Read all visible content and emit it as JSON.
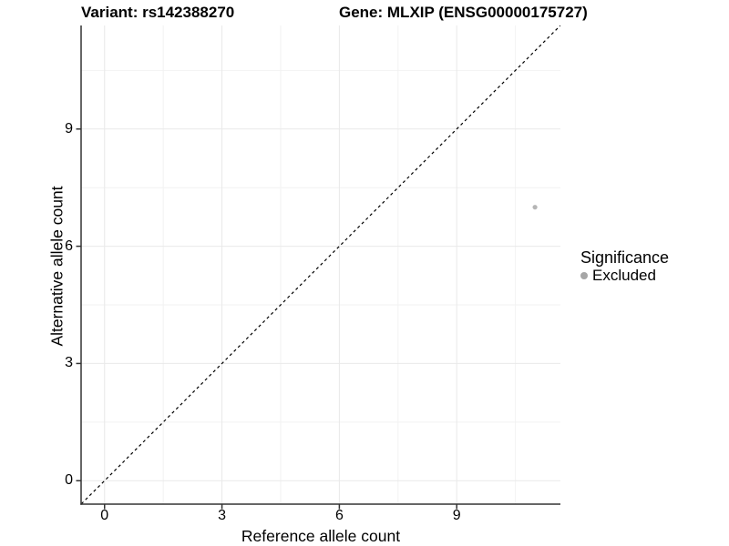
{
  "title": {
    "variant": "Variant: rs142388270",
    "gene": "Gene: MLXIP (ENSG00000175727)"
  },
  "chart_data": {
    "type": "scatter",
    "title": "Variant: rs142388270   Gene: MLXIP (ENSG00000175727)",
    "xlabel": "Reference allele count",
    "ylabel": "Alternative allele count",
    "xlim": [
      -0.6,
      11.65
    ],
    "ylim": [
      -0.6,
      11.65
    ],
    "x_ticks": [
      0,
      3,
      6,
      9
    ],
    "y_ticks": [
      0,
      3,
      6,
      9
    ],
    "minor_gridlines": [
      1.5,
      4.5,
      7.5,
      10.5
    ],
    "grid": true,
    "series": [
      {
        "name": "Excluded",
        "color": "#b5b5b5",
        "points": [
          {
            "x": 11,
            "y": 7
          }
        ]
      }
    ],
    "reference_line": {
      "type": "abline",
      "slope": 1,
      "intercept": 0,
      "style": "dashed",
      "color": "#000000"
    },
    "legend": {
      "title": "Significance",
      "position": "right",
      "entries": [
        {
          "label": "Excluded",
          "color": "#a6a6a6"
        }
      ]
    },
    "colors": {
      "axis_line": "#333333",
      "tick_mark": "#333333",
      "grid_major": "#e9e9e9",
      "grid_minor": "#f2f2f2",
      "text": "#000000"
    }
  }
}
